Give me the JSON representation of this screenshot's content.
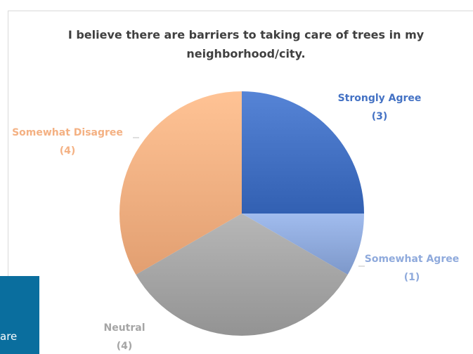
{
  "chart_data": {
    "type": "pie",
    "title": "I believe there are barriers to taking care of trees in my neighborhood/city.",
    "categories": [
      "Strongly Agree",
      "Somewhat Agree",
      "Neutral",
      "Somewhat Disagree"
    ],
    "values": [
      3,
      1,
      4,
      4
    ],
    "value_labels": [
      "(3)",
      "(1)",
      "(4)",
      "(4)"
    ],
    "colors": [
      "#4472c4",
      "#8faadc",
      "#a5a5a5",
      "#f4b183"
    ],
    "label_colors": [
      "#4472c4",
      "#8faadc",
      "#a5a5a5",
      "#f4b183"
    ],
    "legend": "none"
  },
  "overlay": {
    "text": "are",
    "color": "#0a6e9e"
  }
}
